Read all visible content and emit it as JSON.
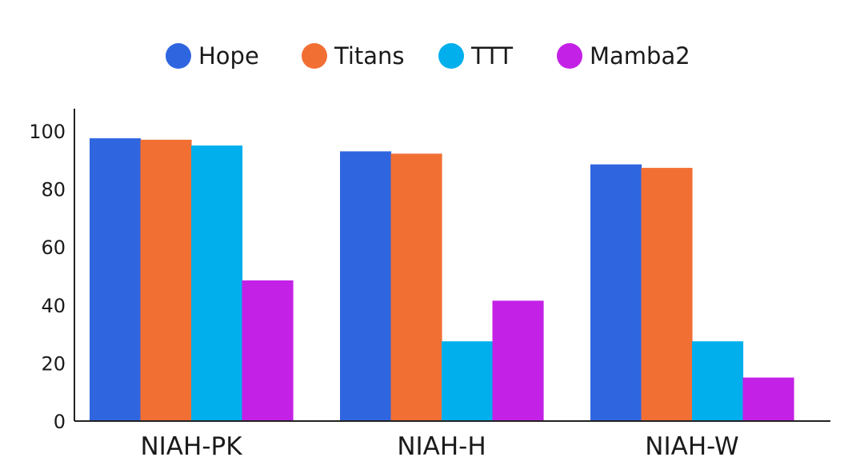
{
  "chart_data": {
    "type": "bar",
    "title": "",
    "xlabel": "",
    "ylabel": "",
    "categories": [
      "NIAH-PK",
      "NIAH-H",
      "NIAH-W"
    ],
    "series": [
      {
        "name": "Hope",
        "color": "#2f66e0",
        "values": [
          97.5,
          93.0,
          88.5
        ]
      },
      {
        "name": "Titans",
        "color": "#f26f34",
        "values": [
          97.0,
          92.2,
          87.3
        ]
      },
      {
        "name": "TTT",
        "color": "#02afed",
        "values": [
          95.0,
          27.5,
          27.5
        ]
      },
      {
        "name": "Mamba2",
        "color": "#c421e6",
        "values": [
          48.5,
          41.5,
          15.0
        ]
      }
    ],
    "ylim": [
      0,
      100
    ],
    "yticks": [
      0,
      20,
      40,
      60,
      80,
      100
    ],
    "grid": false,
    "legend_position": "top-center"
  }
}
